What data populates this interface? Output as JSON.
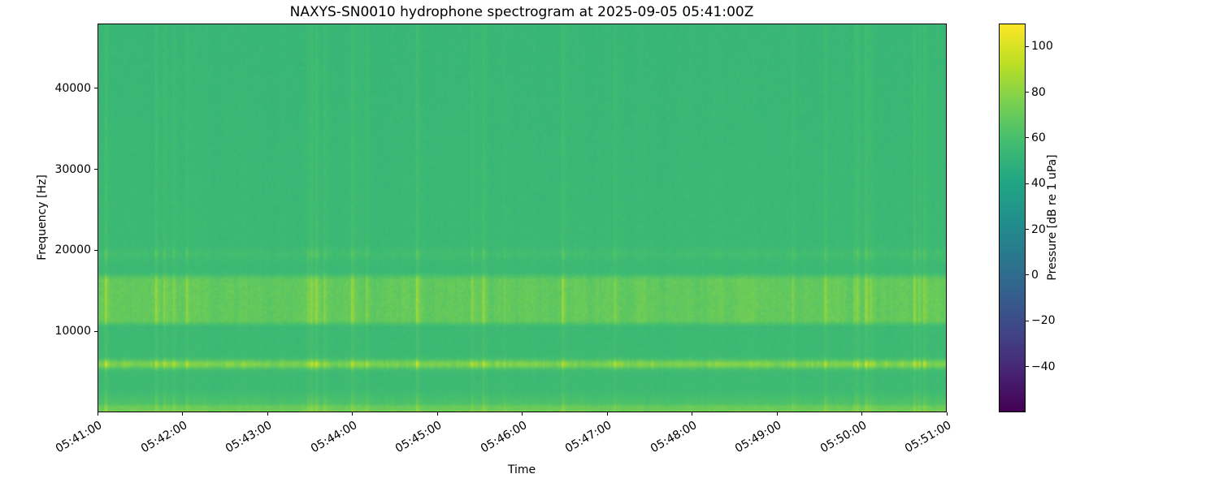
{
  "chart_data": {
    "type": "heatmap",
    "title": "NAXYS-SN0010 hydrophone spectrogram at 2025-09-05 05:41:00Z",
    "xlabel": "Time",
    "ylabel": "Frequency [Hz]",
    "x_tick_labels": [
      "05:41:00",
      "05:42:00",
      "05:43:00",
      "05:44:00",
      "05:45:00",
      "05:46:00",
      "05:47:00",
      "05:48:00",
      "05:49:00",
      "05:50:00",
      "05:51:00"
    ],
    "x_tick_rotation_deg": 30,
    "y_tick_values": [
      10000,
      20000,
      30000,
      40000
    ],
    "ylim": [
      0,
      48000
    ],
    "grid": false,
    "colormap": "viridis",
    "background_level_db": 52,
    "colorbar": {
      "label": "Pressure [dB re 1 uPa]",
      "tick_values": [
        100,
        80,
        60,
        40,
        20,
        0,
        -20,
        -40
      ],
      "vmin": -60,
      "vmax": 110,
      "position": "right"
    },
    "features": {
      "tonal_band": {
        "name": "bright intermittent tonal band",
        "center_hz": 5800,
        "sigma_hz": 380,
        "level_db": [
          60,
          95
        ]
      },
      "mid_band": {
        "name": "broadband elevated band with fine vertical texture",
        "range_hz": [
          10500,
          17200
        ],
        "level_db": [
          58,
          76
        ]
      },
      "high_faint_band": {
        "name": "faint band near 19.5 kHz",
        "center_hz": 19500,
        "sigma_hz": 500,
        "level_db": [
          52,
          60
        ]
      },
      "low_band": {
        "name": "slightly elevated low-frequency region",
        "range_hz": [
          0,
          2600
        ],
        "level_db": [
          55,
          66
        ]
      },
      "bottom_edge": {
        "name": "bright thin line at very bottom",
        "range_hz": [
          0,
          700
        ],
        "level_db": [
          60,
          68
        ]
      },
      "vertical_striations": {
        "name": "full-height faint vertical transient lines",
        "extra_db": [
          0,
          7
        ]
      }
    }
  }
}
